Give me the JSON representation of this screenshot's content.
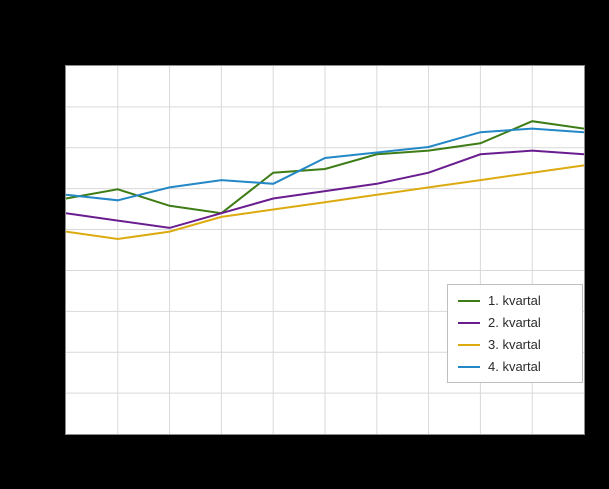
{
  "window": {
    "background": "#000000"
  },
  "chart_data": {
    "type": "line",
    "title": "",
    "xlabel": "",
    "ylabel": "",
    "x": [
      0,
      1,
      2,
      3,
      4,
      5,
      6,
      7,
      8,
      9,
      10
    ],
    "ylim": [
      0,
      100
    ],
    "grid": true,
    "grid_color": "#d9d9d9",
    "plot_background": "#ffffff",
    "plot_border_color": "#8c8c8c",
    "legend_position": "lower-right",
    "series": [
      {
        "name": "1. kvartal",
        "color": "#3e7d16",
        "values": [
          64,
          66.5,
          62,
          60,
          71,
          72,
          76,
          77,
          79,
          85,
          83
        ]
      },
      {
        "name": "2. kvartal",
        "color": "#6a1d8f",
        "values": [
          60,
          58,
          56,
          60,
          64,
          66,
          68,
          71,
          76,
          77,
          76
        ]
      },
      {
        "name": "3. kvartal",
        "color": "#dcab10",
        "values": [
          55,
          53,
          55,
          59,
          61,
          63,
          65,
          67,
          69,
          71,
          73
        ]
      },
      {
        "name": "4. kvartal",
        "color": "#2488c6",
        "values": [
          65,
          63.5,
          67,
          69,
          68,
          75,
          76.5,
          78,
          82,
          83,
          82
        ]
      }
    ]
  }
}
